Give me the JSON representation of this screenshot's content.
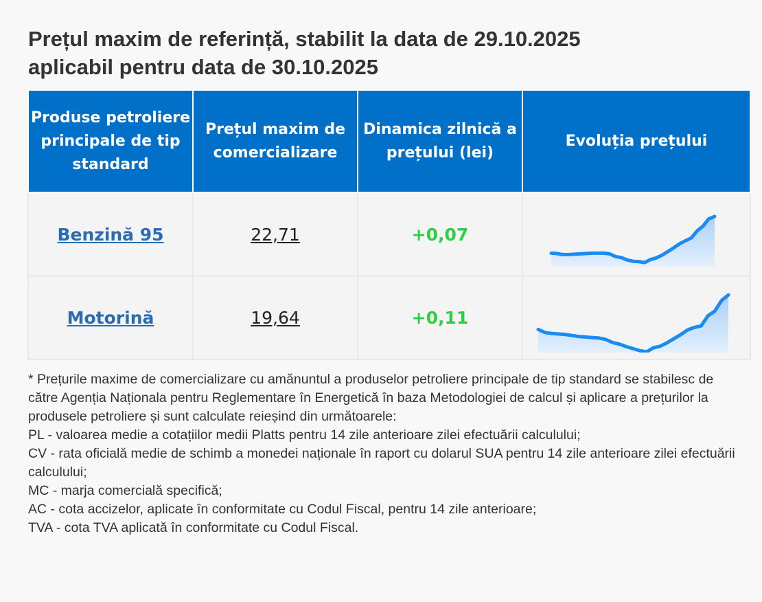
{
  "title": {
    "line1": "Prețul maxim de referință, stabilit la data de 29.10.2025",
    "line2": "aplicabil pentru data de 30.10.2025"
  },
  "table": {
    "headers": [
      "Produse petroliere principale de tip standard",
      "Prețul maxim de comercializare",
      "Dinamica zilnică a prețului (lei)",
      "Evoluția prețului"
    ],
    "rows": [
      {
        "product": "Benzină 95",
        "price": "22,71",
        "change": "+0,07"
      },
      {
        "product": "Motorină",
        "price": "19,64",
        "change": "+0,11"
      }
    ]
  },
  "sparklines": [
    {
      "name": "Benzină 95",
      "values": [
        21.62,
        21.61,
        21.58,
        21.58,
        21.59,
        21.6,
        21.61,
        21.62,
        21.62,
        21.62,
        21.6,
        21.52,
        21.49,
        21.42,
        21.38,
        21.37,
        21.34,
        21.43,
        21.48,
        21.56,
        21.67,
        21.78,
        21.9,
        21.99,
        22.07,
        22.28,
        22.42,
        22.64,
        22.71
      ]
    },
    {
      "name": "Motorină",
      "values": [
        18.96,
        18.9,
        18.88,
        18.87,
        18.86,
        18.84,
        18.82,
        18.81,
        18.8,
        18.79,
        18.76,
        18.7,
        18.67,
        18.62,
        18.58,
        18.54,
        18.52,
        18.6,
        18.63,
        18.7,
        18.78,
        18.86,
        18.95,
        19.0,
        19.03,
        19.23,
        19.32,
        19.53,
        19.64
      ]
    }
  ],
  "colors": {
    "header_bg": "#0070c9",
    "header_text": "#ffffff",
    "link": "#2b6cb0",
    "positive_change": "#2fcf44",
    "spark_line": "#1a8bf0",
    "spark_fill_top": "#a9d0f7",
    "spark_fill_bottom": "#e6f1fd"
  },
  "notes": [
    "* Prețurile maxime de comercializare cu amănuntul a produselor petroliere principale de tip standard se stabilesc de către Agenția Naționala pentru Reglementare în Energetică în baza Metodologiei de calcul și aplicare a prețurilor la produsele petroliere și sunt calculate reieșind din următoarele:",
    "PL - valoarea medie a cotațiilor medii Platts pentru 14 zile anterioare zilei efectuării calculului;",
    "CV - rata oficială medie de schimb a monedei naționale în raport cu dolarul SUA pentru 14 zile anterioare zilei efectuării calculului;",
    "MC - marja comercială specifică;",
    "AC - cota accizelor, aplicate în conformitate cu Codul Fiscal, pentru 14 zile anterioare;",
    "TVA - cota TVA aplicată în conformitate cu Codul Fiscal."
  ]
}
